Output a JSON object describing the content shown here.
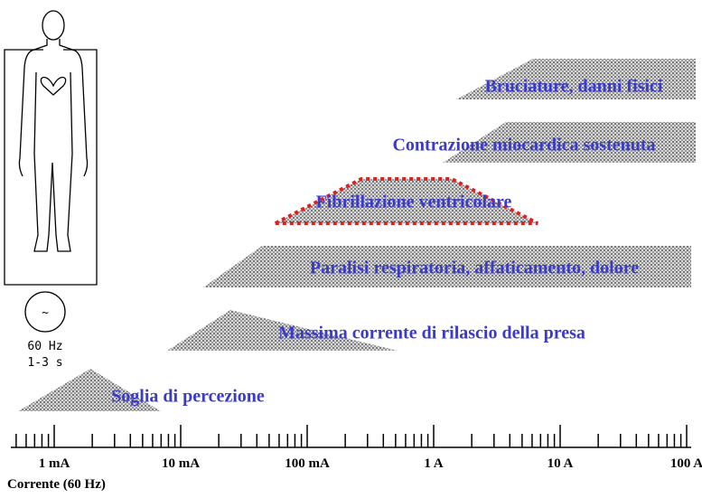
{
  "labels": [
    "Bruciature, danni fisici",
    "Contrazione miocardica sostenuta",
    "Fibrillazione ventricolare",
    "Paralisi respiratoria, affaticamento, dolore",
    "Massima corrente di rilascio della presa",
    "Soglia di percezione"
  ],
  "axis": {
    "ticks": [
      "1 mA",
      "10 mA",
      "100 mA",
      "1 A",
      "10 A",
      "100 A"
    ],
    "title": "Corrente (60 Hz)"
  },
  "source": {
    "symbol": "~",
    "frequency": "60 Hz",
    "duration": "1-3 s"
  }
}
